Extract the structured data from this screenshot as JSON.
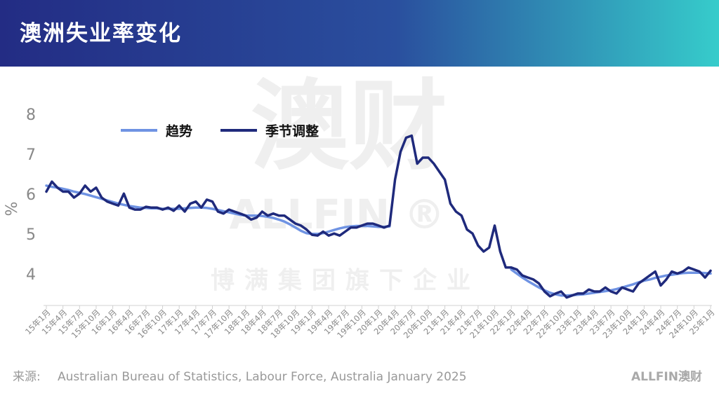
{
  "chart_data": {
    "type": "line",
    "title": "澳洲失业率变化",
    "ylabel": "%",
    "watermark": [
      "澳财",
      "ALLFIN ®",
      "博满集团旗下企业"
    ],
    "source_label": "来源:",
    "source": "Australian Bureau of Statistics, Labour Force, Australia January 2025",
    "logo": "ALLFIN澳财",
    "categories": [
      "15年1月",
      null,
      null,
      "15年4月",
      null,
      null,
      "15年7月",
      null,
      null,
      "15年10月",
      null,
      null,
      "16年1月",
      null,
      null,
      "16年4月",
      null,
      null,
      "16年7月",
      null,
      null,
      "16年10月",
      null,
      null,
      "17年1月",
      null,
      null,
      "17年4月",
      null,
      null,
      "17年7月",
      null,
      null,
      "17年10月",
      null,
      null,
      "18年1月",
      null,
      null,
      "18年4月",
      null,
      null,
      "18年7月",
      null,
      null,
      "18年10月",
      null,
      null,
      "19年1月",
      null,
      null,
      "19年4月",
      null,
      null,
      "19年7月",
      null,
      null,
      "19年10月",
      null,
      null,
      "20年1月",
      null,
      null,
      "20年4月",
      null,
      null,
      "20年7月",
      null,
      null,
      "20年10月",
      null,
      null,
      "21年1月",
      null,
      null,
      "21年4月",
      null,
      null,
      "21年7月",
      null,
      null,
      "21年10月",
      null,
      null,
      "22年1月",
      null,
      null,
      "22年4月",
      null,
      null,
      "22年7月",
      null,
      null,
      "22年10月",
      null,
      null,
      "23年1月",
      null,
      null,
      "23年4月",
      null,
      null,
      "23年7月",
      null,
      null,
      "23年10月",
      null,
      null,
      "24年1月",
      null,
      null,
      "24年4月",
      null,
      null,
      "24年7月",
      null,
      null,
      "24年10月",
      null,
      null,
      "25年1月"
    ],
    "series": [
      {
        "name": "趋势",
        "color": "#6f93e3",
        "width": 3.5,
        "values": [
          6.25,
          6.22,
          6.2,
          6.17,
          6.14,
          6.1,
          6.07,
          6.04,
          6.0,
          5.96,
          5.92,
          5.88,
          5.84,
          5.8,
          5.77,
          5.74,
          5.72,
          5.7,
          5.69,
          5.68,
          5.68,
          5.67,
          5.67,
          5.67,
          5.67,
          5.68,
          5.69,
          5.7,
          5.7,
          5.69,
          5.67,
          5.64,
          5.61,
          5.58,
          5.55,
          5.52,
          5.5,
          5.5,
          5.5,
          5.49,
          5.47,
          5.44,
          5.4,
          5.35,
          5.28,
          5.2,
          5.12,
          5.06,
          5.04,
          5.04,
          5.06,
          5.1,
          5.14,
          5.18,
          5.21,
          5.23,
          5.24,
          5.24,
          5.24,
          5.23,
          5.22,
          5.22,
          5.23,
          null,
          null,
          null,
          null,
          null,
          null,
          null,
          null,
          null,
          null,
          null,
          null,
          null,
          null,
          null,
          null,
          null,
          null,
          null,
          null,
          null,
          4.15,
          4.05,
          3.95,
          3.86,
          3.78,
          3.7,
          3.63,
          3.57,
          3.53,
          3.5,
          3.5,
          3.51,
          3.52,
          3.53,
          3.55,
          3.57,
          3.59,
          3.61,
          3.63,
          3.66,
          3.7,
          3.74,
          3.78,
          3.83,
          3.87,
          3.9,
          3.94,
          3.97,
          4.0,
          4.02,
          4.04,
          4.06,
          4.07,
          4.07,
          4.07,
          4.06,
          4.05
        ]
      },
      {
        "name": "季节调整",
        "color": "#1f2a7c",
        "width": 3.5,
        "values": [
          6.1,
          6.35,
          6.2,
          6.1,
          6.1,
          5.95,
          6.05,
          6.25,
          6.1,
          6.2,
          5.95,
          5.85,
          5.8,
          5.75,
          6.05,
          5.7,
          5.65,
          5.65,
          5.72,
          5.7,
          5.7,
          5.65,
          5.7,
          5.62,
          5.75,
          5.6,
          5.8,
          5.85,
          5.7,
          5.9,
          5.85,
          5.6,
          5.55,
          5.65,
          5.6,
          5.55,
          5.5,
          5.4,
          5.45,
          5.6,
          5.5,
          5.55,
          5.5,
          5.5,
          5.4,
          5.3,
          5.25,
          5.15,
          5.02,
          5.0,
          5.1,
          5.0,
          5.05,
          5.0,
          5.1,
          5.2,
          5.2,
          5.25,
          5.3,
          5.3,
          5.25,
          5.2,
          5.25,
          6.4,
          7.1,
          7.45,
          7.5,
          6.8,
          6.95,
          6.95,
          6.8,
          6.6,
          6.4,
          5.8,
          5.6,
          5.5,
          5.15,
          5.05,
          4.75,
          4.6,
          4.7,
          5.25,
          4.6,
          4.2,
          4.2,
          4.15,
          4.0,
          3.95,
          3.9,
          3.8,
          3.6,
          3.48,
          3.55,
          3.6,
          3.45,
          3.5,
          3.55,
          3.55,
          3.65,
          3.6,
          3.6,
          3.7,
          3.6,
          3.55,
          3.7,
          3.65,
          3.6,
          3.8,
          3.9,
          4.0,
          4.1,
          3.75,
          3.9,
          4.1,
          4.05,
          4.1,
          4.2,
          4.15,
          4.1,
          3.95,
          4.12
        ]
      }
    ],
    "ylim": [
      3.25,
      8.3
    ],
    "yticks": [
      4,
      5,
      6,
      7,
      8
    ],
    "legend": "top-left"
  }
}
